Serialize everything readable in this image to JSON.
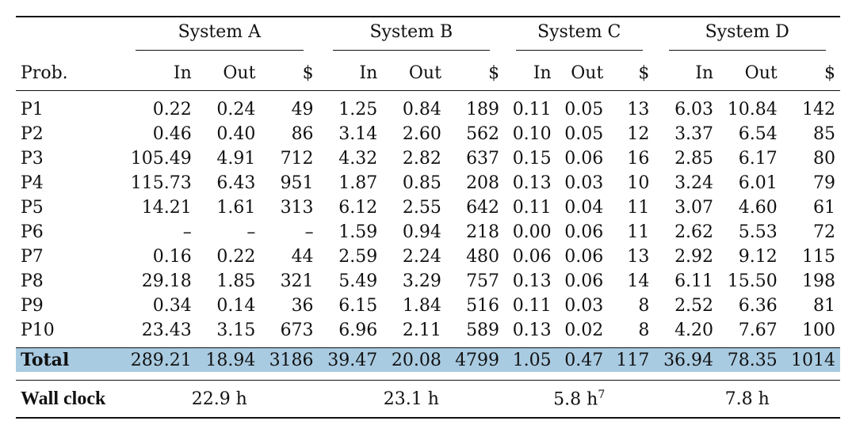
{
  "header": {
    "prob_label": "Prob.",
    "systems": [
      "System A",
      "System B",
      "System C",
      "System D"
    ],
    "col_in": "In",
    "col_out": "Out",
    "col_cost": "$"
  },
  "rows": [
    {
      "prob": "P1",
      "a": [
        "0.22",
        "0.24",
        "49"
      ],
      "b": [
        "1.25",
        "0.84",
        "189"
      ],
      "c": [
        "0.11",
        "0.05",
        "13"
      ],
      "d": [
        "6.03",
        "10.84",
        "142"
      ]
    },
    {
      "prob": "P2",
      "a": [
        "0.46",
        "0.40",
        "86"
      ],
      "b": [
        "3.14",
        "2.60",
        "562"
      ],
      "c": [
        "0.10",
        "0.05",
        "12"
      ],
      "d": [
        "3.37",
        "6.54",
        "85"
      ]
    },
    {
      "prob": "P3",
      "a": [
        "105.49",
        "4.91",
        "712"
      ],
      "b": [
        "4.32",
        "2.82",
        "637"
      ],
      "c": [
        "0.15",
        "0.06",
        "16"
      ],
      "d": [
        "2.85",
        "6.17",
        "80"
      ]
    },
    {
      "prob": "P4",
      "a": [
        "115.73",
        "6.43",
        "951"
      ],
      "b": [
        "1.87",
        "0.85",
        "208"
      ],
      "c": [
        "0.13",
        "0.03",
        "10"
      ],
      "d": [
        "3.24",
        "6.01",
        "79"
      ]
    },
    {
      "prob": "P5",
      "a": [
        "14.21",
        "1.61",
        "313"
      ],
      "b": [
        "6.12",
        "2.55",
        "642"
      ],
      "c": [
        "0.11",
        "0.04",
        "11"
      ],
      "d": [
        "3.07",
        "4.60",
        "61"
      ]
    },
    {
      "prob": "P6",
      "a": [
        "–",
        "–",
        "–"
      ],
      "b": [
        "1.59",
        "0.94",
        "218"
      ],
      "c": [
        "0.00",
        "0.06",
        "11"
      ],
      "d": [
        "2.62",
        "5.53",
        "72"
      ]
    },
    {
      "prob": "P7",
      "a": [
        "0.16",
        "0.22",
        "44"
      ],
      "b": [
        "2.59",
        "2.24",
        "480"
      ],
      "c": [
        "0.06",
        "0.06",
        "13"
      ],
      "d": [
        "2.92",
        "9.12",
        "115"
      ]
    },
    {
      "prob": "P8",
      "a": [
        "29.18",
        "1.85",
        "321"
      ],
      "b": [
        "5.49",
        "3.29",
        "757"
      ],
      "c": [
        "0.13",
        "0.06",
        "14"
      ],
      "d": [
        "6.11",
        "15.50",
        "198"
      ]
    },
    {
      "prob": "P9",
      "a": [
        "0.34",
        "0.14",
        "36"
      ],
      "b": [
        "6.15",
        "1.84",
        "516"
      ],
      "c": [
        "0.11",
        "0.03",
        "8"
      ],
      "d": [
        "2.52",
        "6.36",
        "81"
      ]
    },
    {
      "prob": "P10",
      "a": [
        "23.43",
        "3.15",
        "673"
      ],
      "b": [
        "6.96",
        "2.11",
        "589"
      ],
      "c": [
        "0.13",
        "0.02",
        "8"
      ],
      "d": [
        "4.20",
        "7.67",
        "100"
      ]
    }
  ],
  "total": {
    "label": "Total",
    "a": [
      "289.21",
      "18.94",
      "3186"
    ],
    "b": [
      "39.47",
      "20.08",
      "4799"
    ],
    "c": [
      "1.05",
      "0.47",
      "117"
    ],
    "d": [
      "36.94",
      "78.35",
      "1014"
    ]
  },
  "wall_clock": {
    "label": "Wall clock",
    "a": "22.9 h",
    "b": "23.1 h",
    "c": "5.8 h",
    "c_footnote": "7",
    "d": "7.8 h"
  },
  "colors": {
    "highlight": "#a9cbe1"
  }
}
